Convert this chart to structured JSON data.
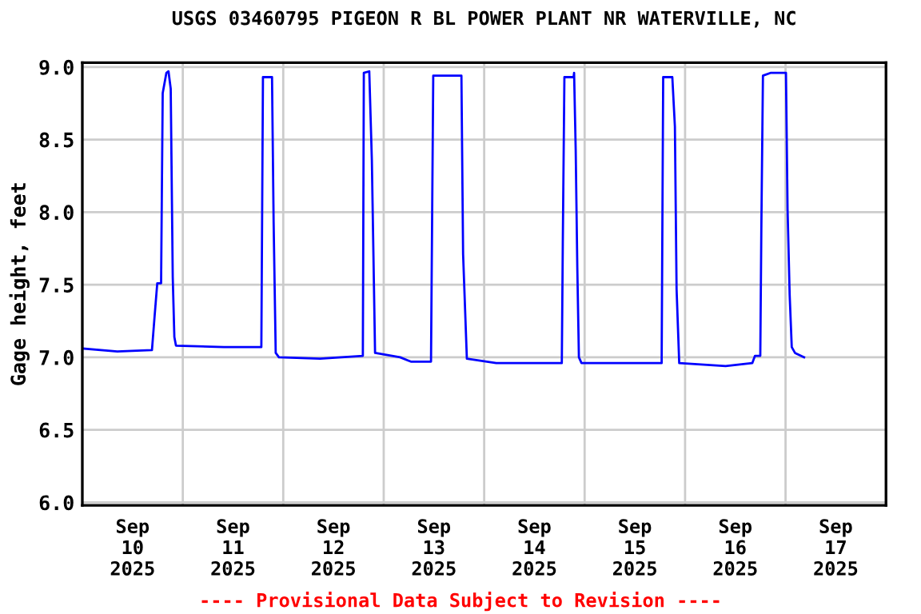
{
  "chart_data": {
    "type": "line",
    "title": "USGS 03460795 PIGEON R BL POWER PLANT NR WATERVILLE, NC",
    "ylabel": "Gage height, feet",
    "annotations": [
      "---- Provisional Data Subject to Revision ----"
    ],
    "grid": true,
    "legend": false,
    "marker": "none",
    "line_style": "solid",
    "xlim": [
      "2025-09-10T00:00",
      "2025-09-18T00:00"
    ],
    "xticks": [
      {
        "value": "2025-09-10T12:00",
        "label": "Sep\n10\n2025"
      },
      {
        "value": "2025-09-11T12:00",
        "label": "Sep\n11\n2025"
      },
      {
        "value": "2025-09-12T12:00",
        "label": "Sep\n12\n2025"
      },
      {
        "value": "2025-09-13T12:00",
        "label": "Sep\n13\n2025"
      },
      {
        "value": "2025-09-14T12:00",
        "label": "Sep\n14\n2025"
      },
      {
        "value": "2025-09-15T12:00",
        "label": "Sep\n15\n2025"
      },
      {
        "value": "2025-09-16T12:00",
        "label": "Sep\n16\n2025"
      },
      {
        "value": "2025-09-17T12:00",
        "label": "Sep\n17\n2025"
      },
      {
        "value": "2025-09-11T00:00",
        "label": null
      },
      {
        "value": "2025-09-12T00:00",
        "label": null
      },
      {
        "value": "2025-09-13T00:00",
        "label": null
      },
      {
        "value": "2025-09-14T00:00",
        "label": null
      },
      {
        "value": "2025-09-15T00:00",
        "label": null
      },
      {
        "value": "2025-09-16T00:00",
        "label": null
      },
      {
        "value": "2025-09-17T00:00",
        "label": null
      }
    ],
    "ylim": [
      5.98,
      9.03
    ],
    "yticks": [
      {
        "value": 6,
        "label": "6.0"
      },
      {
        "value": 6.5,
        "label": "6.5"
      },
      {
        "value": 7,
        "label": "7.0"
      },
      {
        "value": 7.5,
        "label": "7.5"
      },
      {
        "value": 8,
        "label": "8.0"
      },
      {
        "value": 8.5,
        "label": "8.5"
      },
      {
        "value": 9,
        "label": "9.0"
      }
    ],
    "series": [
      {
        "color": "#0000ff",
        "x": [
          "2025-09-10T00:05",
          "2025-09-10T08:21",
          "2025-09-10T16:38",
          "2025-09-10T17:17",
          "2025-09-10T17:54",
          "2025-09-10T18:49",
          "2025-09-10T19:12",
          "2025-09-10T20:05",
          "2025-09-10T20:35",
          "2025-09-10T21:07",
          "2025-09-10T21:36",
          "2025-09-10T21:59",
          "2025-09-10T22:22",
          "2025-09-11T09:50",
          "2025-09-11T18:46",
          "2025-09-11T19:09",
          "2025-09-11T21:19",
          "2025-09-11T21:42",
          "2025-09-11T22:12",
          "2025-09-11T22:58",
          "2025-09-12T08:48",
          "2025-09-12T19:01",
          "2025-09-12T19:15",
          "2025-09-12T20:33",
          "2025-09-12T21:10",
          "2025-09-12T21:56",
          "2025-09-13T03:55",
          "2025-09-13T06:29",
          "2025-09-13T11:18",
          "2025-09-13T11:50",
          "2025-09-13T18:34",
          "2025-09-13T18:58",
          "2025-09-13T19:52",
          "2025-09-14T02:53",
          "2025-09-14T18:33",
          "2025-09-14T18:47",
          "2025-09-14T19:10",
          "2025-09-14T21:22",
          "2025-09-14T21:29",
          "2025-09-14T21:52",
          "2025-09-14T22:15",
          "2025-09-14T22:38",
          "2025-09-14T23:15",
          "2025-09-15T09:27",
          "2025-09-15T18:24",
          "2025-09-15T18:46",
          "2025-09-15T20:57",
          "2025-09-15T21:34",
          "2025-09-15T21:58",
          "2025-09-15T22:36",
          "2025-09-16T09:41",
          "2025-09-16T16:03",
          "2025-09-16T16:42",
          "2025-09-16T17:58",
          "2025-09-16T18:13",
          "2025-09-16T18:36",
          "2025-09-16T20:31",
          "2025-09-17T00:06",
          "2025-09-17T00:29",
          "2025-09-17T00:59",
          "2025-09-17T01:29",
          "2025-09-17T02:15",
          "2025-09-17T04:26"
        ],
        "values": [
          7.06,
          7.04,
          7.05,
          7.29,
          7.51,
          7.51,
          8.82,
          8.96,
          8.97,
          8.85,
          7.55,
          7.14,
          7.08,
          7.07,
          7.07,
          8.93,
          8.93,
          7.93,
          7.03,
          7.0,
          6.99,
          7.01,
          8.96,
          8.97,
          8.36,
          7.03,
          7.0,
          6.97,
          6.97,
          8.94,
          8.94,
          7.71,
          6.99,
          6.96,
          6.96,
          7.78,
          8.93,
          8.93,
          8.96,
          8.43,
          7.62,
          7.0,
          6.96,
          6.96,
          6.96,
          8.93,
          8.93,
          8.59,
          7.47,
          6.96,
          6.94,
          6.96,
          7.01,
          7.01,
          7.88,
          8.94,
          8.96,
          8.96,
          8.02,
          7.43,
          7.07,
          7.03,
          7.0
        ]
      }
    ]
  }
}
